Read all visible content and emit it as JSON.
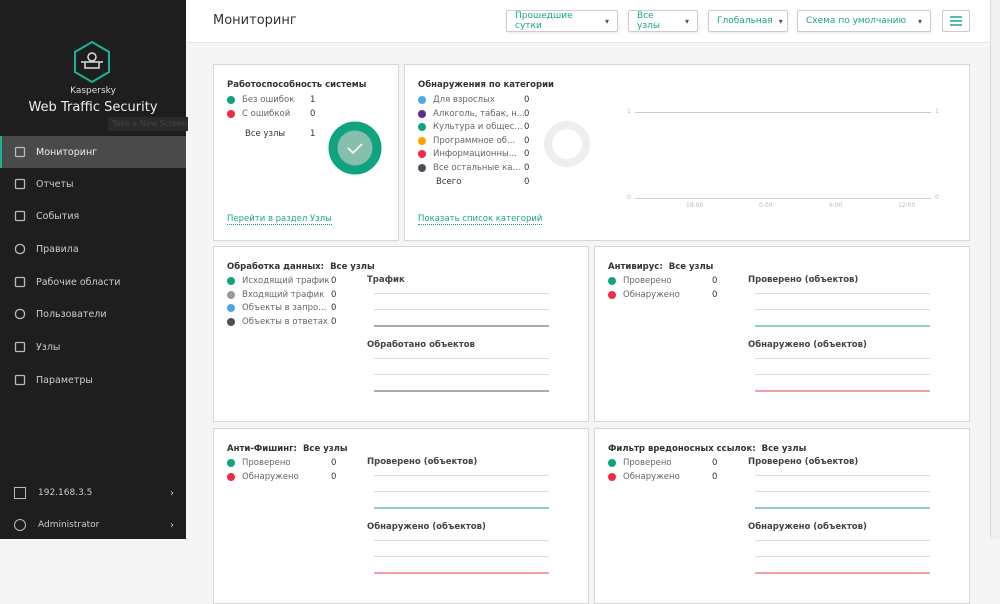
{
  "app": {
    "vendor": "Kaspersky",
    "product": "Web Traffic Security",
    "tooltip": "Take a New Screenshot",
    "accent": "#1bb394"
  },
  "sidebar": {
    "items": [
      {
        "label": "Мониторинг",
        "icon": "dashboard-icon",
        "active": true
      },
      {
        "label": "Отчеты",
        "icon": "report-icon"
      },
      {
        "label": "События",
        "icon": "events-icon"
      },
      {
        "label": "Правила",
        "icon": "shield-icon"
      },
      {
        "label": "Рабочие области",
        "icon": "workspaces-icon"
      },
      {
        "label": "Пользователи",
        "icon": "user-icon"
      },
      {
        "label": "Узлы",
        "icon": "nodes-icon"
      },
      {
        "label": "Параметры",
        "icon": "gear-icon"
      }
    ],
    "node": "192.168.3.5",
    "user": "Administrator"
  },
  "header": {
    "title": "Мониторинг",
    "filters": [
      "Прошедшие сутки",
      "Все узлы",
      "Глобальная",
      "Схема по умолчанию"
    ]
  },
  "health": {
    "title": "Работоспособность системы",
    "items": [
      {
        "label": "Без ошибок",
        "value": "1",
        "color": "#0fa37f"
      },
      {
        "label": "С ошибкой",
        "value": "0",
        "color": "#ee2c45"
      }
    ],
    "total_label": "Все узлы",
    "total": "1",
    "link": "Перейти в раздел Узлы"
  },
  "categories": {
    "title": "Обнаружения по категории",
    "items": [
      {
        "label": "Для взрослых",
        "value": "0",
        "color": "#4aa8e6"
      },
      {
        "label": "Алкоголь, табак, н...",
        "value": "0",
        "color": "#5b2d8c"
      },
      {
        "label": "Культура и общес...",
        "value": "0",
        "color": "#0fa37f"
      },
      {
        "label": "Программное об...",
        "value": "0",
        "color": "#ffa200"
      },
      {
        "label": "Информационны...",
        "value": "0",
        "color": "#ee2c45"
      },
      {
        "label": "Все остальные ка...",
        "value": "0",
        "color": "#4b4f58"
      }
    ],
    "total_label": "Всего",
    "total": "0",
    "link": "Показать список категорий",
    "chart": {
      "type": "line",
      "y_ticks": [
        "1",
        "0"
      ],
      "x_ticks": [
        "18:00",
        "0:00",
        "6:00",
        "12:00"
      ]
    }
  },
  "processing": {
    "title": "Обработка данных:",
    "scope": "Все узлы",
    "items": [
      {
        "label": "Исходящий трафик",
        "value": "0",
        "color": "#0fa37f"
      },
      {
        "label": "Входящий трафик",
        "value": "0",
        "color": "#999999"
      },
      {
        "label": "Объекты в запро...",
        "value": "0",
        "color": "#4aa8e6"
      },
      {
        "label": "Объекты в ответах",
        "value": "0",
        "color": "#4b4f58"
      }
    ],
    "charts": [
      "Трафик",
      "Обработано объектов"
    ]
  },
  "antivirus": {
    "title": "Антивирус:",
    "scope": "Все узлы",
    "items": [
      {
        "label": "Проверено",
        "value": "0",
        "color": "#0fa37f"
      },
      {
        "label": "Обнаружено",
        "value": "0",
        "color": "#ee2c45"
      }
    ],
    "charts": [
      "Проверено (объектов)",
      "Обнаружено (объектов)"
    ]
  },
  "antiphishing": {
    "title": "Анти-Фишинг:",
    "scope": "Все узлы",
    "items": [
      {
        "label": "Проверено",
        "value": "0",
        "color": "#0fa37f"
      },
      {
        "label": "Обнаружено",
        "value": "0",
        "color": "#ee2c45"
      }
    ],
    "charts": [
      "Проверено (объектов)",
      "Обнаружено (объектов)"
    ]
  },
  "malurl": {
    "title": "Фильтр вредоносных ссылок:",
    "scope": "Все узлы",
    "items": [
      {
        "label": "Проверено",
        "value": "0",
        "color": "#0fa37f"
      },
      {
        "label": "Обнаружено",
        "value": "0",
        "color": "#ee2c45"
      }
    ],
    "charts": [
      "Проверено (объектов)",
      "Обнаружено (объектов)"
    ]
  }
}
